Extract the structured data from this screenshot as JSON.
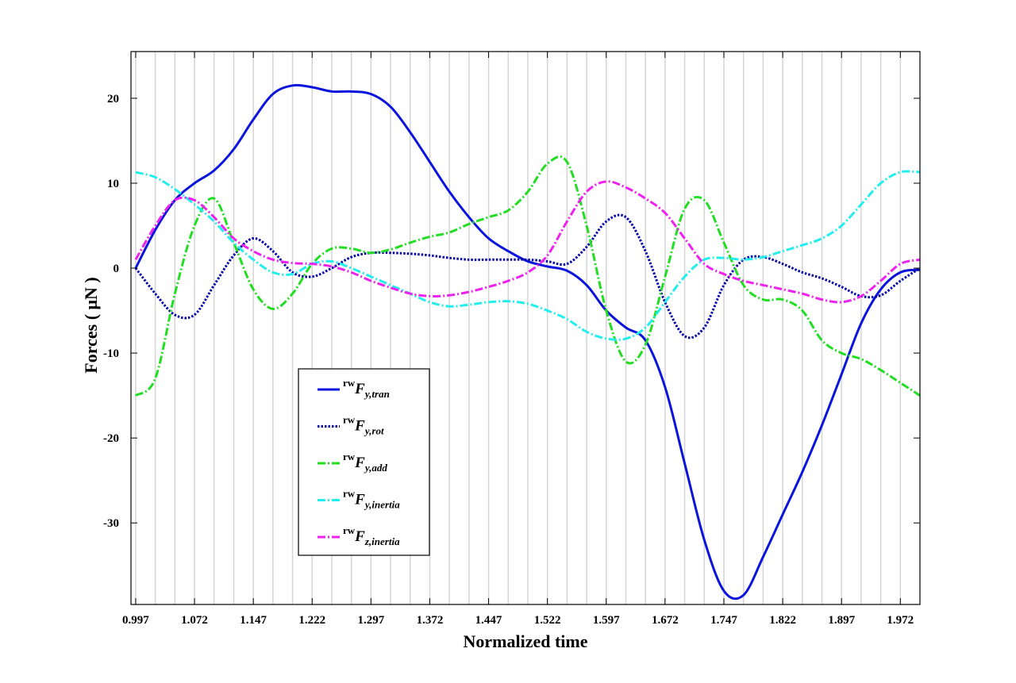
{
  "chart_data": {
    "type": "line",
    "xlabel": "Normalized time",
    "ylabel": "Forces ( μN )",
    "x": [
      0.997,
      1.022,
      1.047,
      1.072,
      1.097,
      1.122,
      1.147,
      1.172,
      1.197,
      1.222,
      1.247,
      1.272,
      1.297,
      1.322,
      1.347,
      1.372,
      1.397,
      1.422,
      1.447,
      1.472,
      1.497,
      1.522,
      1.547,
      1.572,
      1.597,
      1.622,
      1.647,
      1.672,
      1.697,
      1.722,
      1.747,
      1.772,
      1.797,
      1.822,
      1.847,
      1.872,
      1.897,
      1.922,
      1.947,
      1.972,
      1.997
    ],
    "xlim": [
      0.991,
      1.997
    ],
    "ylim": [
      -39.6,
      25.5
    ],
    "xticks": [
      0.997,
      1.072,
      1.147,
      1.222,
      1.297,
      1.372,
      1.447,
      1.522,
      1.597,
      1.672,
      1.747,
      1.822,
      1.897,
      1.972
    ],
    "xgrid": [
      0.997,
      1.022,
      1.047,
      1.072,
      1.097,
      1.122,
      1.147,
      1.172,
      1.197,
      1.222,
      1.247,
      1.272,
      1.297,
      1.322,
      1.347,
      1.372,
      1.397,
      1.422,
      1.447,
      1.472,
      1.497,
      1.522,
      1.547,
      1.572,
      1.597,
      1.622,
      1.647,
      1.672,
      1.697,
      1.722,
      1.747,
      1.772,
      1.797,
      1.822,
      1.847,
      1.872,
      1.897,
      1.922,
      1.947,
      1.972
    ],
    "yticks": [
      20,
      10,
      0,
      -10,
      -20,
      -30
    ],
    "grid": true,
    "series": [
      {
        "name": {
          "sup": "rw",
          "base": "F",
          "sub": "y,tran"
        },
        "color": "#0a14dc",
        "style": "solid",
        "values": [
          0,
          4.5,
          8,
          10,
          11.5,
          14,
          17.5,
          20.5,
          21.5,
          21.3,
          20.8,
          20.8,
          20.5,
          19,
          16,
          12.5,
          9,
          6,
          3.5,
          2,
          0.8,
          0.2,
          -0.3,
          -2,
          -5,
          -7,
          -8.5,
          -14,
          -23,
          -32,
          -38,
          -38.5,
          -34,
          -29,
          -24,
          -18.5,
          -12.5,
          -6.5,
          -2.5,
          -0.5,
          -0.2
        ]
      },
      {
        "name": {
          "sup": "rw",
          "base": "F",
          "sub": "y,rot"
        },
        "color": "#0000a8",
        "style": "dotted",
        "values": [
          0,
          -3,
          -5.5,
          -5.5,
          -2,
          1.5,
          3.5,
          2,
          -0.5,
          -1,
          0,
          1.3,
          1.8,
          1.8,
          1.7,
          1.5,
          1.2,
          1,
          1,
          1,
          1,
          0.8,
          0.5,
          2.5,
          5.5,
          6,
          2,
          -4,
          -8,
          -7,
          -2,
          1,
          1.3,
          0.5,
          -0.5,
          -1.2,
          -2.2,
          -3.3,
          -3.2,
          -1.5,
          0
        ]
      },
      {
        "name": {
          "sup": "rw",
          "base": "F",
          "sub": "y,add"
        },
        "color": "#22dd22",
        "style": "dashdot",
        "values": [
          -15,
          -13,
          -3,
          5,
          8.2,
          3,
          -2.5,
          -4.8,
          -3,
          0.5,
          2.3,
          2.3,
          1.8,
          2.2,
          3,
          3.7,
          4.2,
          5.2,
          6,
          6.8,
          9,
          12.3,
          12.5,
          5,
          -5,
          -11,
          -9,
          -1,
          7,
          8,
          3,
          -2,
          -3.7,
          -3.7,
          -5,
          -8.5,
          -10,
          -10.7,
          -12,
          -13.5,
          -15
        ]
      },
      {
        "name": {
          "sup": "rw",
          "base": "F",
          "sub": "y,inertia"
        },
        "color": "#22eeee",
        "style": "dashdot",
        "values": [
          11.3,
          10.7,
          9.3,
          7.5,
          5.5,
          3,
          1,
          -0.5,
          -0.7,
          0.5,
          0.8,
          0,
          -1,
          -2,
          -3,
          -4,
          -4.5,
          -4.3,
          -4,
          -3.9,
          -4.2,
          -5,
          -6,
          -7.5,
          -8.3,
          -8.3,
          -7,
          -4,
          -1,
          1,
          1.2,
          1,
          1.3,
          2,
          2.7,
          3.5,
          5,
          7.5,
          10,
          11.3,
          11.3
        ]
      },
      {
        "name": {
          "sup": "rw",
          "base": "F",
          "sub": "z,inertia"
        },
        "color": "#ee22ee",
        "style": "dashdot",
        "values": [
          1,
          5,
          8,
          8,
          6,
          3.5,
          2,
          1,
          0.6,
          0.5,
          0.2,
          -0.5,
          -1.5,
          -2.3,
          -3,
          -3.3,
          -3.2,
          -2.8,
          -2.2,
          -1.5,
          -0.5,
          1.5,
          5.5,
          9,
          10.2,
          9.5,
          8.2,
          6.5,
          3.5,
          0.5,
          -0.7,
          -1.5,
          -2,
          -2.5,
          -3,
          -3.7,
          -4,
          -3.3,
          -1.5,
          0.5,
          1
        ]
      }
    ]
  }
}
